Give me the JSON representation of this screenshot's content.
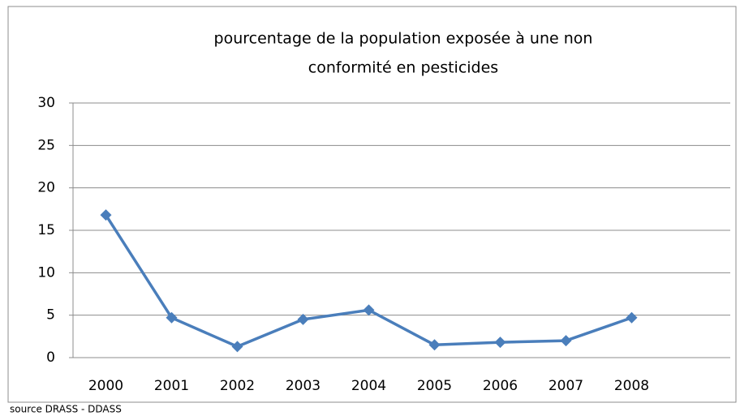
{
  "chart_data": {
    "type": "line",
    "title": [
      "pourcentage de la population exposée à une non",
      "conformité en pesticides"
    ],
    "categories": [
      "2000",
      "2001",
      "2002",
      "2003",
      "2004",
      "2005",
      "2006",
      "2007",
      "2008",
      null
    ],
    "series": [
      {
        "color": "#4a7ebb",
        "values": [
          16.8,
          4.7,
          1.3,
          4.5,
          5.6,
          1.5,
          1.8,
          2.0,
          4.7,
          null
        ]
      }
    ],
    "ylim": [
      0,
      30
    ],
    "yticks": [
      0,
      5,
      10,
      15,
      20,
      25,
      30
    ],
    "grid": true,
    "source": "source DRASS - DDASS"
  }
}
